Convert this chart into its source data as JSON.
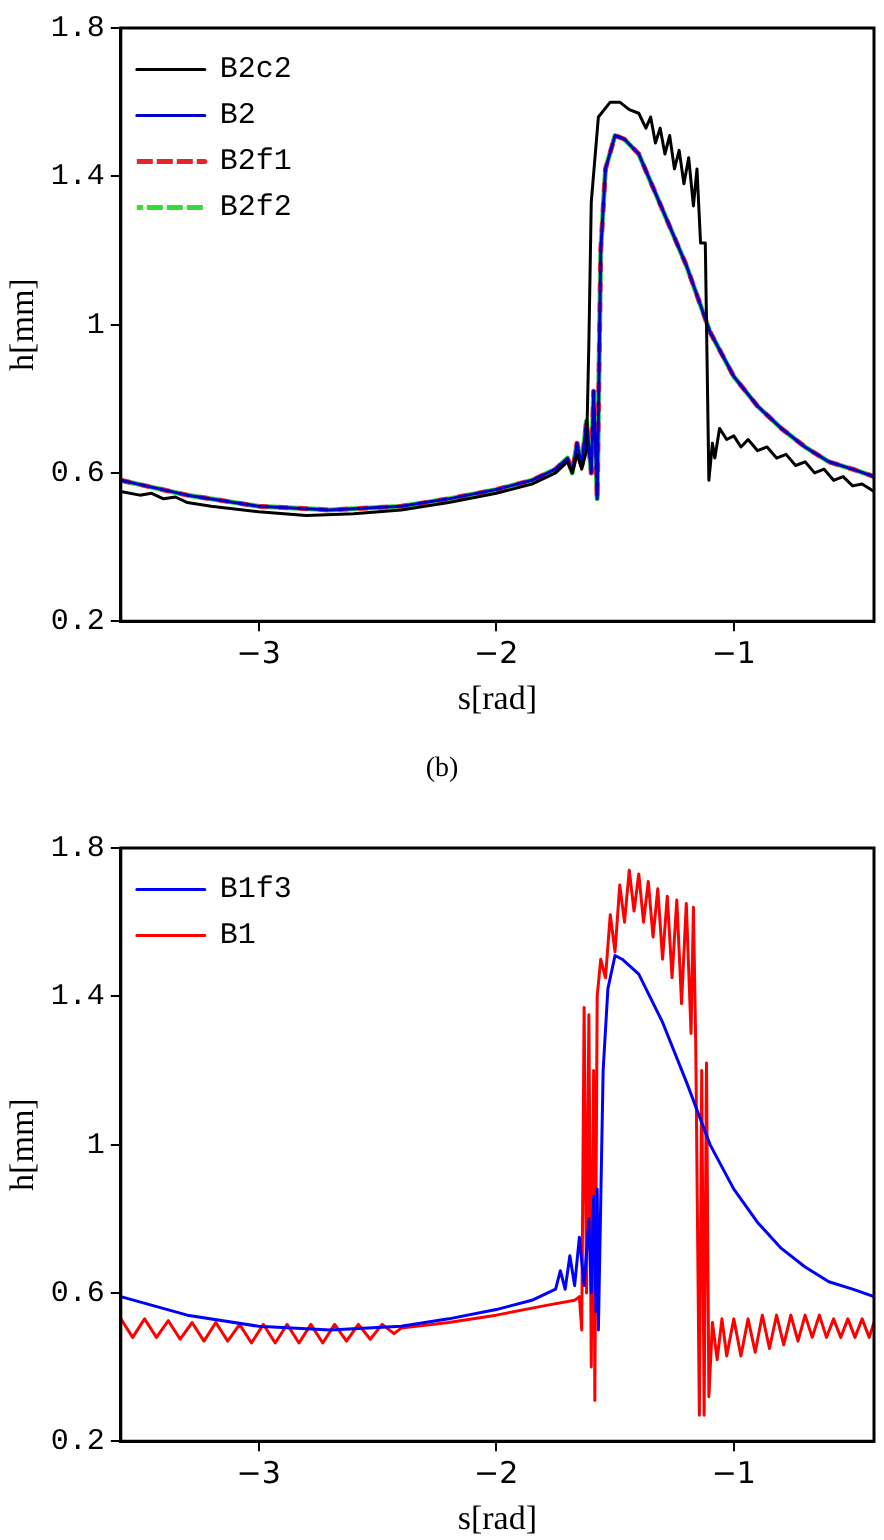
{
  "chart_data": [
    {
      "type": "line",
      "xlabel": "s[rad]",
      "ylabel": "h[mm]",
      "xlim": [
        -3.58,
        -0.41
      ],
      "ylim": [
        0.2,
        1.8
      ],
      "xticks": [
        {
          "value": -3,
          "label": "−3"
        },
        {
          "value": -2,
          "label": "−2"
        },
        {
          "value": -1,
          "label": "−1"
        }
      ],
      "yticks": [
        0.2,
        0.6,
        1,
        1.4,
        1.8
      ],
      "grid": false,
      "legend": "top left",
      "marker": "none",
      "annotations": [
        "(b)"
      ],
      "x": [
        -3.58,
        -3.3,
        -3.0,
        -2.7,
        -2.4,
        -2.2,
        -2.0,
        -1.85,
        -1.75,
        -1.7,
        -1.68,
        -1.66,
        -1.64,
        -1.62,
        -1.6,
        -1.59,
        -1.575,
        -1.56,
        -1.54,
        -1.5,
        -1.46,
        -1.4,
        -1.3,
        -1.2,
        -1.1,
        -1.0,
        -0.9,
        -0.8,
        -0.7,
        -0.6,
        -0.5,
        -0.41
      ],
      "series": [
        {
          "name": "B2c2",
          "color": "#000000",
          "line_style": "solid",
          "x": [
            -3.58,
            -3.5,
            -3.45,
            -3.4,
            -3.35,
            -3.3,
            -3.2,
            -3.0,
            -2.8,
            -2.6,
            -2.4,
            -2.2,
            -2.0,
            -1.85,
            -1.75,
            -1.7,
            -1.68,
            -1.66,
            -1.64,
            -1.62,
            -1.61,
            -1.6,
            -1.57,
            -1.52,
            -1.48,
            -1.44,
            -1.4,
            -1.37,
            -1.35,
            -1.33,
            -1.31,
            -1.29,
            -1.27,
            -1.25,
            -1.23,
            -1.21,
            -1.19,
            -1.17,
            -1.155,
            -1.14,
            -1.12,
            -1.105,
            -1.09,
            -1.08,
            -1.06,
            -1.03,
            -1.0,
            -0.97,
            -0.94,
            -0.9,
            -0.86,
            -0.82,
            -0.78,
            -0.74,
            -0.7,
            -0.66,
            -0.62,
            -0.58,
            -0.54,
            -0.5,
            -0.46,
            -0.41
          ],
          "values": [
            0.55,
            0.54,
            0.545,
            0.53,
            0.535,
            0.52,
            0.51,
            0.495,
            0.485,
            0.49,
            0.5,
            0.52,
            0.545,
            0.57,
            0.6,
            0.63,
            0.6,
            0.65,
            0.61,
            0.66,
            0.95,
            1.33,
            1.56,
            1.6,
            1.6,
            1.58,
            1.57,
            1.53,
            1.56,
            1.49,
            1.53,
            1.46,
            1.51,
            1.42,
            1.47,
            1.38,
            1.45,
            1.32,
            1.42,
            1.22,
            1.22,
            0.58,
            0.68,
            0.64,
            0.72,
            0.69,
            0.7,
            0.67,
            0.69,
            0.66,
            0.67,
            0.64,
            0.65,
            0.62,
            0.63,
            0.6,
            0.61,
            0.58,
            0.59,
            0.565,
            0.57,
            0.55
          ]
        },
        {
          "name": "B2",
          "color": "#0000cc",
          "line_style": "solid",
          "values": [
            0.58,
            0.54,
            0.51,
            0.5,
            0.51,
            0.53,
            0.555,
            0.58,
            0.61,
            0.64,
            0.6,
            0.68,
            0.62,
            0.74,
            0.6,
            0.82,
            0.53,
            1.2,
            1.42,
            1.51,
            1.5,
            1.46,
            1.31,
            1.16,
            0.98,
            0.86,
            0.78,
            0.72,
            0.67,
            0.63,
            0.61,
            0.59
          ]
        },
        {
          "name": "B2f1",
          "color": "#e4262b",
          "line_style": "dashed",
          "values": [
            0.58,
            0.54,
            0.51,
            0.5,
            0.51,
            0.53,
            0.555,
            0.58,
            0.61,
            0.64,
            0.6,
            0.68,
            0.62,
            0.74,
            0.6,
            0.82,
            0.53,
            1.2,
            1.42,
            1.51,
            1.5,
            1.46,
            1.31,
            1.16,
            0.98,
            0.86,
            0.78,
            0.72,
            0.67,
            0.63,
            0.61,
            0.59
          ]
        },
        {
          "name": "B2f2",
          "color": "#33dd33",
          "line_style": "dashed",
          "values": [
            0.58,
            0.54,
            0.51,
            0.5,
            0.51,
            0.53,
            0.555,
            0.58,
            0.61,
            0.64,
            0.6,
            0.68,
            0.62,
            0.74,
            0.6,
            0.82,
            0.53,
            1.2,
            1.42,
            1.51,
            1.5,
            1.46,
            1.31,
            1.16,
            0.98,
            0.86,
            0.78,
            0.72,
            0.67,
            0.63,
            0.61,
            0.59
          ]
        }
      ]
    },
    {
      "type": "line",
      "xlabel": "s[rad]",
      "ylabel": "h[mm]",
      "xlim": [
        -3.58,
        -0.41
      ],
      "ylim": [
        0.2,
        1.8
      ],
      "xticks": [
        {
          "value": -3,
          "label": "−3"
        },
        {
          "value": -2,
          "label": "−2"
        },
        {
          "value": -1,
          "label": "−1"
        }
      ],
      "yticks": [
        0.2,
        0.6,
        1,
        1.4,
        1.8
      ],
      "grid": false,
      "legend": "top left",
      "marker": "none",
      "series": [
        {
          "name": "B1f3",
          "color": "#0000ff",
          "line_style": "solid",
          "x": [
            -3.58,
            -3.3,
            -3.0,
            -2.7,
            -2.4,
            -2.2,
            -2.0,
            -1.85,
            -1.75,
            -1.73,
            -1.71,
            -1.69,
            -1.67,
            -1.65,
            -1.63,
            -1.61,
            -1.6,
            -1.59,
            -1.58,
            -1.575,
            -1.57,
            -1.55,
            -1.53,
            -1.5,
            -1.47,
            -1.4,
            -1.3,
            -1.2,
            -1.1,
            -1.0,
            -0.9,
            -0.8,
            -0.7,
            -0.6,
            -0.5,
            -0.41
          ],
          "values": [
            0.59,
            0.54,
            0.51,
            0.5,
            0.51,
            0.53,
            0.555,
            0.58,
            0.61,
            0.66,
            0.61,
            0.7,
            0.62,
            0.75,
            0.62,
            0.8,
            0.6,
            0.86,
            0.55,
            0.88,
            0.5,
            1.2,
            1.42,
            1.51,
            1.5,
            1.46,
            1.33,
            1.17,
            1.0,
            0.88,
            0.79,
            0.72,
            0.67,
            0.63,
            0.61,
            0.59
          ]
        },
        {
          "name": "B1",
          "color": "#ff0000",
          "line_style": "solid",
          "x": [
            -3.58,
            -3.53,
            -3.48,
            -3.43,
            -3.38,
            -3.33,
            -3.28,
            -3.23,
            -3.18,
            -3.13,
            -3.08,
            -3.03,
            -2.98,
            -2.93,
            -2.88,
            -2.83,
            -2.78,
            -2.73,
            -2.68,
            -2.63,
            -2.58,
            -2.53,
            -2.48,
            -2.43,
            -2.4,
            -2.2,
            -2.0,
            -1.8,
            -1.67,
            -1.65,
            -1.64,
            -1.63,
            -1.62,
            -1.61,
            -1.6,
            -1.59,
            -1.585,
            -1.575,
            -1.56,
            -1.54,
            -1.52,
            -1.5,
            -1.48,
            -1.46,
            -1.44,
            -1.42,
            -1.4,
            -1.38,
            -1.36,
            -1.34,
            -1.32,
            -1.3,
            -1.28,
            -1.26,
            -1.24,
            -1.22,
            -1.2,
            -1.18,
            -1.17,
            -1.16,
            -1.145,
            -1.135,
            -1.125,
            -1.115,
            -1.105,
            -1.09,
            -1.07,
            -1.05,
            -1.03,
            -1.0,
            -0.97,
            -0.94,
            -0.91,
            -0.88,
            -0.85,
            -0.82,
            -0.79,
            -0.76,
            -0.73,
            -0.7,
            -0.67,
            -0.64,
            -0.61,
            -0.58,
            -0.55,
            -0.52,
            -0.49,
            -0.46,
            -0.43,
            -0.41
          ],
          "values": [
            0.53,
            0.48,
            0.53,
            0.48,
            0.525,
            0.475,
            0.52,
            0.47,
            0.52,
            0.47,
            0.515,
            0.465,
            0.515,
            0.465,
            0.515,
            0.465,
            0.515,
            0.465,
            0.515,
            0.47,
            0.515,
            0.475,
            0.515,
            0.49,
            0.505,
            0.52,
            0.54,
            0.565,
            0.58,
            0.59,
            0.5,
            1.37,
            0.6,
            1.35,
            0.4,
            1.2,
            0.31,
            1.4,
            1.5,
            1.45,
            1.62,
            1.52,
            1.7,
            1.6,
            1.74,
            1.63,
            1.73,
            1.6,
            1.71,
            1.56,
            1.69,
            1.5,
            1.67,
            1.45,
            1.66,
            1.38,
            1.65,
            1.3,
            1.64,
            1.26,
            0.27,
            1.2,
            0.27,
            1.22,
            0.32,
            0.52,
            0.42,
            0.53,
            0.43,
            0.53,
            0.43,
            0.53,
            0.44,
            0.54,
            0.45,
            0.54,
            0.46,
            0.54,
            0.47,
            0.54,
            0.48,
            0.54,
            0.48,
            0.53,
            0.48,
            0.53,
            0.48,
            0.53,
            0.48,
            0.52
          ]
        }
      ]
    }
  ]
}
